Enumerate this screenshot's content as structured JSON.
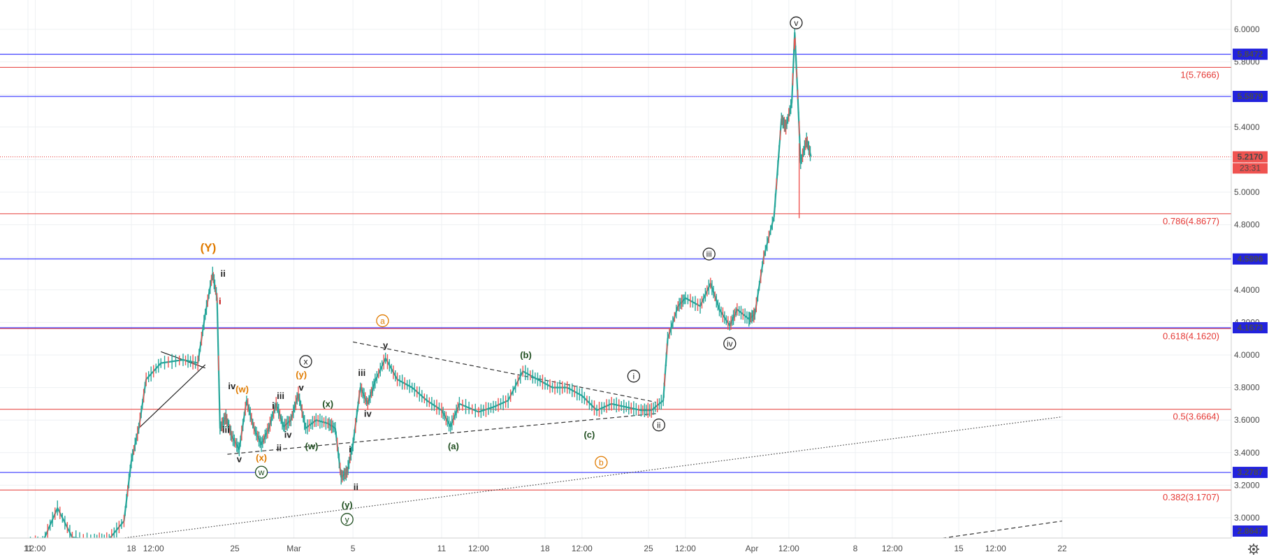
{
  "chart_data": {
    "type": "candlestick",
    "last_price": "5.2170",
    "countdown": "23:31",
    "y_ticks": [
      {
        "v": 3.0,
        "label": "3.0000"
      },
      {
        "v": 3.2,
        "label": "3.2000"
      },
      {
        "v": 3.4,
        "label": "3.4000"
      },
      {
        "v": 3.6,
        "label": "3.6000"
      },
      {
        "v": 3.8,
        "label": "3.8000"
      },
      {
        "v": 4.0,
        "label": "4.0000"
      },
      {
        "v": 4.2,
        "label": "4.2000"
      },
      {
        "v": 4.4,
        "label": "4.4000"
      },
      {
        "v": 4.6,
        "label": "4.6000"
      },
      {
        "v": 4.8,
        "label": "4.8000"
      },
      {
        "v": 5.0,
        "label": "5.0000"
      },
      {
        "v": 5.2,
        "label": "5.2000"
      },
      {
        "v": 5.4,
        "label": "5.4000"
      },
      {
        "v": 5.6,
        "label": "5.6000"
      },
      {
        "v": 5.8,
        "label": "5.8000"
      },
      {
        "v": 6.0,
        "label": "6.0000"
      }
    ],
    "x_ticks": [
      {
        "d": 11.0,
        "label": "11"
      },
      {
        "d": 11.5,
        "label": "12:00"
      },
      {
        "d": 18.0,
        "label": "18"
      },
      {
        "d": 19.5,
        "label": "12:00"
      },
      {
        "d": 25.0,
        "label": "25"
      },
      {
        "d": 29.0,
        "label": "Mar"
      },
      {
        "d": 33.0,
        "label": "5"
      },
      {
        "d": 39.0,
        "label": "11"
      },
      {
        "d": 41.5,
        "label": "12:00"
      },
      {
        "d": 46.0,
        "label": "18"
      },
      {
        "d": 48.5,
        "label": "12:00"
      },
      {
        "d": 53.0,
        "label": "25"
      },
      {
        "d": 55.5,
        "label": "12:00"
      },
      {
        "d": 60.0,
        "label": "Apr"
      },
      {
        "d": 62.5,
        "label": "12:00"
      },
      {
        "d": 67.0,
        "label": "8"
      },
      {
        "d": 69.5,
        "label": "12:00"
      },
      {
        "d": 74.0,
        "label": "15"
      },
      {
        "d": 76.5,
        "label": "12:00"
      },
      {
        "d": 81.0,
        "label": "22"
      }
    ],
    "horizontal_levels": [
      {
        "value": 5.8472,
        "color": "#1a1aff",
        "badge": "5.8472"
      },
      {
        "value": 5.5879,
        "color": "#1a1aff",
        "badge": "5.5879"
      },
      {
        "value": 4.5896,
        "color": "#1a1aff",
        "badge": "4.5896"
      },
      {
        "value": 4.1673,
        "color": "#1a1aff",
        "badge": "4.1673"
      },
      {
        "value": 3.2787,
        "color": "#1a1aff",
        "badge": "3.2787"
      },
      {
        "value": 2.8647,
        "color": "#1a1aff",
        "badge": "2.8647"
      }
    ],
    "fib_levels": [
      {
        "value": 5.7666,
        "label": "1(5.7666)"
      },
      {
        "value": 4.8677,
        "label": "0.786(4.8677)"
      },
      {
        "value": 4.162,
        "label": "0.618(4.1620)"
      },
      {
        "value": 3.6664,
        "label": "0.5(3.6664)"
      },
      {
        "value": 3.1707,
        "label": "0.382(3.1707)"
      }
    ],
    "price_path": [
      [
        11.0,
        2.84
      ],
      [
        12.0,
        2.85
      ],
      [
        13.0,
        3.06
      ],
      [
        14.0,
        2.88
      ],
      [
        15.5,
        2.86
      ],
      [
        16.5,
        2.87
      ],
      [
        17.5,
        2.98
      ],
      [
        18.0,
        3.35
      ],
      [
        18.5,
        3.55
      ],
      [
        19.0,
        3.85
      ],
      [
        20.0,
        3.95
      ],
      [
        21.5,
        3.97
      ],
      [
        22.5,
        3.95
      ],
      [
        23.0,
        4.25
      ],
      [
        23.5,
        4.5
      ],
      [
        23.8,
        4.35
      ],
      [
        24.0,
        3.55
      ],
      [
        24.4,
        3.62
      ],
      [
        24.8,
        3.5
      ],
      [
        25.3,
        3.42
      ],
      [
        25.8,
        3.72
      ],
      [
        26.3,
        3.55
      ],
      [
        26.8,
        3.45
      ],
      [
        27.3,
        3.55
      ],
      [
        27.8,
        3.7
      ],
      [
        28.3,
        3.56
      ],
      [
        28.8,
        3.6
      ],
      [
        29.3,
        3.76
      ],
      [
        29.8,
        3.55
      ],
      [
        30.5,
        3.6
      ],
      [
        31.3,
        3.58
      ],
      [
        31.8,
        3.55
      ],
      [
        32.2,
        3.25
      ],
      [
        32.6,
        3.28
      ],
      [
        33.0,
        3.45
      ],
      [
        33.5,
        3.8
      ],
      [
        34.0,
        3.7
      ],
      [
        34.5,
        3.84
      ],
      [
        35.2,
        3.98
      ],
      [
        36.0,
        3.85
      ],
      [
        37.0,
        3.8
      ],
      [
        38.0,
        3.72
      ],
      [
        39.0,
        3.66
      ],
      [
        39.6,
        3.56
      ],
      [
        40.2,
        3.7
      ],
      [
        41.5,
        3.65
      ],
      [
        42.5,
        3.68
      ],
      [
        43.5,
        3.72
      ],
      [
        44.5,
        3.9
      ],
      [
        45.5,
        3.85
      ],
      [
        46.5,
        3.8
      ],
      [
        47.5,
        3.8
      ],
      [
        48.5,
        3.75
      ],
      [
        49.5,
        3.66
      ],
      [
        50.5,
        3.7
      ],
      [
        51.5,
        3.68
      ],
      [
        52.5,
        3.66
      ],
      [
        53.2,
        3.66
      ],
      [
        54.0,
        3.72
      ],
      [
        54.3,
        4.1
      ],
      [
        55.0,
        4.3
      ],
      [
        55.5,
        4.35
      ],
      [
        56.5,
        4.3
      ],
      [
        57.2,
        4.44
      ],
      [
        57.8,
        4.28
      ],
      [
        58.5,
        4.18
      ],
      [
        59.0,
        4.28
      ],
      [
        59.8,
        4.22
      ],
      [
        60.2,
        4.25
      ],
      [
        60.8,
        4.6
      ],
      [
        61.5,
        4.85
      ],
      [
        62.0,
        5.45
      ],
      [
        62.3,
        5.4
      ],
      [
        62.7,
        5.55
      ],
      [
        62.9,
        5.98
      ],
      [
        63.1,
        5.6
      ],
      [
        63.3,
        5.18
      ],
      [
        63.7,
        5.32
      ],
      [
        64.0,
        5.22
      ]
    ],
    "wick_down": {
      "d": 63.2,
      "from": 5.3,
      "to": 4.84
    },
    "trend_lines": [
      {
        "style": "dashed",
        "color": "#333333",
        "p1": [
          24.5,
          3.39
        ],
        "p2": [
          53.5,
          3.64
        ]
      },
      {
        "style": "dashed",
        "color": "#333333",
        "p1": [
          33.0,
          4.08
        ],
        "p2": [
          53.5,
          3.71
        ]
      },
      {
        "style": "dotted",
        "color": "#444444",
        "p1": [
          11.0,
          2.8
        ],
        "p2": [
          81.0,
          3.62
        ]
      },
      {
        "style": "dashed",
        "color": "#333333",
        "p1": [
          71.0,
          2.85
        ],
        "p2": [
          81.0,
          2.98
        ]
      },
      {
        "style": "solid",
        "color": "#222222",
        "p1": [
          18.5,
          3.55
        ],
        "p2": [
          23.0,
          3.94
        ]
      },
      {
        "style": "solid",
        "color": "#222222",
        "p1": [
          20.0,
          4.02
        ],
        "p2": [
          23.0,
          3.92
        ]
      }
    ],
    "wave_labels": [
      {
        "text": "(Y)",
        "d": 23.2,
        "v": 4.66,
        "color": "#e07b00",
        "circle": false,
        "size": 17
      },
      {
        "text": "ii",
        "d": 24.2,
        "v": 4.5,
        "color": "#222222",
        "circle": false,
        "size": 13
      },
      {
        "text": "i",
        "d": 24.0,
        "v": 4.33,
        "color": "#c00000",
        "circle": false,
        "size": 13
      },
      {
        "text": "iv",
        "d": 24.8,
        "v": 3.81,
        "color": "#222222",
        "circle": false,
        "size": 13
      },
      {
        "text": "(w)",
        "d": 25.5,
        "v": 3.79,
        "color": "#e07b00",
        "circle": false,
        "size": 13
      },
      {
        "text": "iii",
        "d": 24.4,
        "v": 3.54,
        "color": "#222222",
        "circle": false,
        "size": 13
      },
      {
        "text": "v",
        "d": 25.3,
        "v": 3.36,
        "color": "#222222",
        "circle": false,
        "size": 13
      },
      {
        "text": "(x)",
        "d": 26.8,
        "v": 3.37,
        "color": "#e07b00",
        "circle": false,
        "size": 13
      },
      {
        "text": "w",
        "d": 26.8,
        "v": 3.28,
        "color": "#1e4d1e",
        "circle": true,
        "size": 12
      },
      {
        "text": "i",
        "d": 27.6,
        "v": 3.69,
        "color": "#222222",
        "circle": false,
        "size": 13
      },
      {
        "text": "iii",
        "d": 28.1,
        "v": 3.75,
        "color": "#222222",
        "circle": false,
        "size": 13
      },
      {
        "text": "ii",
        "d": 28.0,
        "v": 3.43,
        "color": "#222222",
        "circle": false,
        "size": 13
      },
      {
        "text": "iv",
        "d": 28.6,
        "v": 3.51,
        "color": "#222222",
        "circle": false,
        "size": 13
      },
      {
        "text": "v",
        "d": 29.5,
        "v": 3.8,
        "color": "#222222",
        "circle": false,
        "size": 13
      },
      {
        "text": "(y)",
        "d": 29.5,
        "v": 3.88,
        "color": "#e07b00",
        "circle": false,
        "size": 13
      },
      {
        "text": "x",
        "d": 29.8,
        "v": 3.96,
        "color": "#222222",
        "circle": true,
        "size": 12
      },
      {
        "text": "(w)",
        "d": 30.2,
        "v": 3.44,
        "color": "#1e4d1e",
        "circle": false,
        "size": 13
      },
      {
        "text": "(x)",
        "d": 31.3,
        "v": 3.7,
        "color": "#1e4d1e",
        "circle": false,
        "size": 13
      },
      {
        "text": "i",
        "d": 32.8,
        "v": 3.42,
        "color": "#222222",
        "circle": false,
        "size": 13
      },
      {
        "text": "ii",
        "d": 33.2,
        "v": 3.19,
        "color": "#222222",
        "circle": false,
        "size": 13
      },
      {
        "text": "(y)",
        "d": 32.6,
        "v": 3.08,
        "color": "#1e4d1e",
        "circle": false,
        "size": 13
      },
      {
        "text": "y",
        "d": 32.6,
        "v": 2.99,
        "color": "#1e4d1e",
        "circle": true,
        "size": 12
      },
      {
        "text": "iii",
        "d": 33.6,
        "v": 3.89,
        "color": "#222222",
        "circle": false,
        "size": 13
      },
      {
        "text": "iv",
        "d": 34.0,
        "v": 3.64,
        "color": "#222222",
        "circle": false,
        "size": 13
      },
      {
        "text": "y",
        "d": 35.2,
        "v": 4.06,
        "color": "#222222",
        "circle": false,
        "size": 13
      },
      {
        "text": "a",
        "d": 35.0,
        "v": 4.21,
        "color": "#e07b00",
        "circle": true,
        "size": 12
      },
      {
        "text": "(a)",
        "d": 39.8,
        "v": 3.44,
        "color": "#1e4d1e",
        "circle": false,
        "size": 13
      },
      {
        "text": "(b)",
        "d": 44.7,
        "v": 4.0,
        "color": "#1e4d1e",
        "circle": false,
        "size": 13
      },
      {
        "text": "(c)",
        "d": 49.0,
        "v": 3.51,
        "color": "#1e4d1e",
        "circle": false,
        "size": 13
      },
      {
        "text": "b",
        "d": 49.8,
        "v": 3.34,
        "color": "#e07b00",
        "circle": true,
        "size": 12
      },
      {
        "text": "i",
        "d": 52.0,
        "v": 3.87,
        "color": "#222222",
        "circle": true,
        "size": 12
      },
      {
        "text": "ii",
        "d": 53.7,
        "v": 3.57,
        "color": "#222222",
        "circle": true,
        "size": 12
      },
      {
        "text": "iii",
        "d": 57.1,
        "v": 4.62,
        "color": "#222222",
        "circle": true,
        "size": 12
      },
      {
        "text": "iv",
        "d": 58.5,
        "v": 4.07,
        "color": "#222222",
        "circle": true,
        "size": 12
      },
      {
        "text": "v",
        "d": 63.0,
        "v": 6.04,
        "color": "#222222",
        "circle": true,
        "size": 12
      }
    ]
  },
  "settings_icon": "gear-icon"
}
